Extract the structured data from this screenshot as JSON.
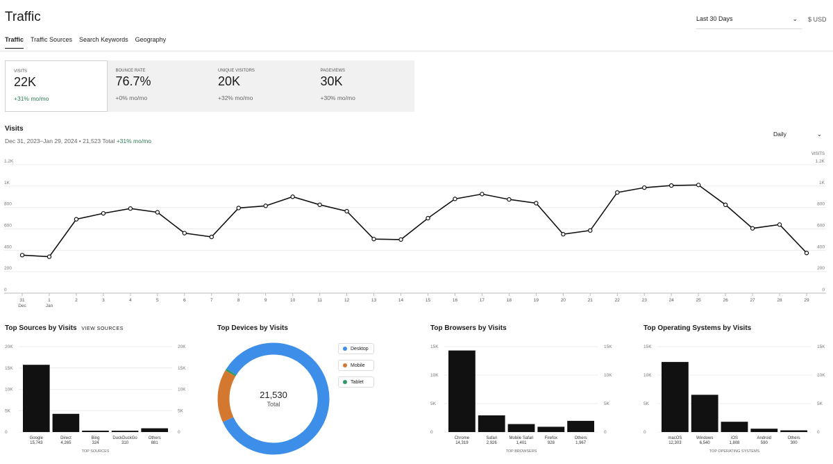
{
  "header": {
    "title": "Traffic",
    "date_range": "Last 30 Days",
    "currency": "$ USD"
  },
  "tabs": [
    {
      "label": "Traffic",
      "active": true
    },
    {
      "label": "Traffic Sources",
      "active": false
    },
    {
      "label": "Search Keywords",
      "active": false
    },
    {
      "label": "Geography",
      "active": false
    }
  ],
  "stats": [
    {
      "label": "VISITS",
      "value": "22K",
      "change": "+31% mo/mo",
      "active": true,
      "positive": true
    },
    {
      "label": "BOUNCE RATE",
      "value": "76.7%",
      "change": "+0% mo/mo",
      "active": false,
      "positive": false
    },
    {
      "label": "UNIQUE VISITORS",
      "value": "20K",
      "change": "+32% mo/mo",
      "active": false,
      "positive": false
    },
    {
      "label": "PAGEVIEWS",
      "value": "30K",
      "change": "+30% mo/mo",
      "active": false,
      "positive": false
    }
  ],
  "visits": {
    "title": "Visits",
    "subtitle": "Dec 31, 2023–Jan 29, 2024 • 21,523 Total",
    "change": "+31% mo/mo",
    "granularity": "Daily"
  },
  "chart_data": [
    {
      "type": "line",
      "ylabel": "VISITS",
      "ylim": [
        0,
        1200
      ],
      "yticks": [
        0,
        200,
        400,
        600,
        800,
        1000,
        1200
      ],
      "yticklabels": [
        "0",
        "200",
        "400",
        "600",
        "800",
        "1K",
        "1.2K"
      ],
      "x": [
        "31",
        "1",
        "2",
        "3",
        "4",
        "5",
        "6",
        "7",
        "8",
        "9",
        "10",
        "11",
        "12",
        "13",
        "14",
        "15",
        "16",
        "17",
        "18",
        "19",
        "20",
        "21",
        "22",
        "23",
        "24",
        "25",
        "26",
        "27",
        "28",
        "29"
      ],
      "xsub": {
        "0": "Dec",
        "1": "Jan"
      },
      "series": [
        {
          "values": [
            355,
            340,
            690,
            745,
            790,
            755,
            560,
            525,
            795,
            815,
            900,
            825,
            765,
            505,
            500,
            700,
            880,
            925,
            875,
            840,
            550,
            585,
            940,
            985,
            1005,
            1010,
            825,
            605,
            640,
            375
          ]
        }
      ]
    },
    {
      "type": "bar",
      "title": "Top Sources by Visits",
      "xlabel": "TOP SOURCES",
      "ylim": [
        0,
        20000
      ],
      "yticks": [
        0,
        5000,
        10000,
        15000,
        20000
      ],
      "yticklabels": [
        "0",
        "5K",
        "10K",
        "15K",
        "20K"
      ],
      "categories": [
        "Google",
        "Direct",
        "Bing",
        "DuckDuckGo",
        "Others"
      ],
      "values": [
        15743,
        4265,
        324,
        310,
        881
      ],
      "value_labels": [
        "15,743",
        "4,265",
        "324",
        "310",
        "881"
      ]
    },
    {
      "type": "pie",
      "title": "Top Devices by Visits",
      "center_value": "21,530",
      "center_label": "Total",
      "categories": [
        "Desktop",
        "Mobile",
        "Tablet"
      ],
      "values": [
        18100,
        3300,
        130
      ],
      "colors": [
        "#3d8ee8",
        "#d5782f",
        "#2e9a6a"
      ]
    },
    {
      "type": "bar",
      "title": "Top Browsers by Visits",
      "xlabel": "TOP BROWSERS",
      "ylim": [
        0,
        15000
      ],
      "yticks": [
        0,
        5000,
        10000,
        15000
      ],
      "yticklabels": [
        "0",
        "5K",
        "10K",
        "15K"
      ],
      "categories": [
        "Chrome",
        "Safari",
        "Mobile Safari",
        "Firefox",
        "Others"
      ],
      "values": [
        14319,
        2926,
        1401,
        928,
        1967
      ],
      "value_labels": [
        "14,319",
        "2,926",
        "1,401",
        "928",
        "1,967"
      ]
    },
    {
      "type": "bar",
      "title": "Top Operating Systems by Visits",
      "xlabel": "TOP OPERATING SYSTEMS",
      "ylim": [
        0,
        15000
      ],
      "yticks": [
        0,
        5000,
        10000,
        15000
      ],
      "yticklabels": [
        "0",
        "5K",
        "10K",
        "15K"
      ],
      "categories": [
        "macOS",
        "Windows",
        "iOS",
        "Android",
        "Others"
      ],
      "values": [
        12303,
        6540,
        1808,
        590,
        300
      ],
      "value_labels": [
        "12,303",
        "6,540",
        "1,808",
        "590",
        "300"
      ]
    }
  ],
  "sources_link": "VIEW SOURCES",
  "colors": {
    "accent_positive": "#2f7a52",
    "bar": "#111111",
    "line": "#111111"
  }
}
